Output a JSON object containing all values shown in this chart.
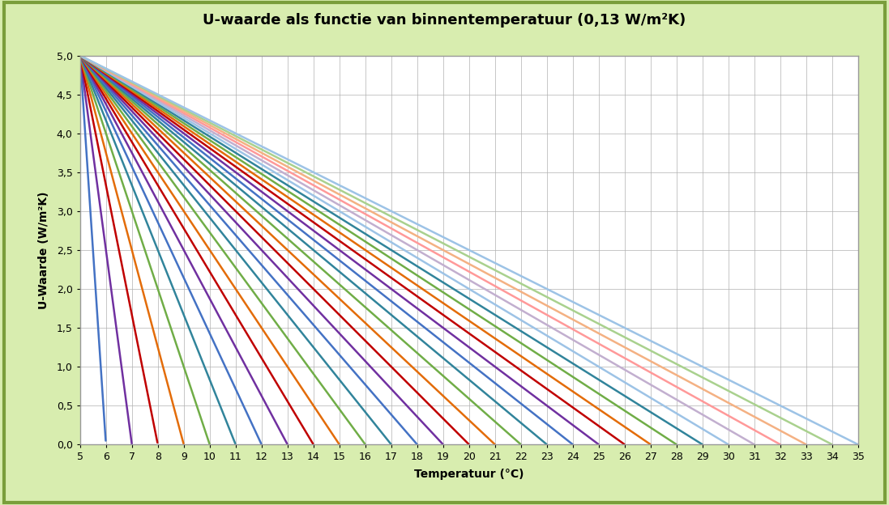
{
  "title": "U-waarde als functie van binnentemperatuur (0,13 W/m²K)",
  "xlabel": "Temperatuur (°C)",
  "ylabel": "U-Waarde (W/m²K)",
  "x_min": 5,
  "x_max": 35,
  "y_min": 0.0,
  "y_max": 5.0,
  "background_outer": "#d8edaf",
  "background_inner": "#ffffff",
  "grid_color": "#b0b0b0",
  "x_ticks": [
    5,
    6,
    7,
    8,
    9,
    10,
    11,
    12,
    13,
    14,
    15,
    16,
    17,
    18,
    19,
    20,
    21,
    22,
    23,
    24,
    25,
    26,
    27,
    28,
    29,
    30,
    31,
    32,
    33,
    34,
    35
  ],
  "y_ticks": [
    0.0,
    0.5,
    1.0,
    1.5,
    2.0,
    2.5,
    3.0,
    3.5,
    4.0,
    4.5,
    5.0
  ],
  "T_zeros": [
    6,
    7,
    8,
    9,
    10,
    11,
    12,
    13,
    14,
    15,
    16,
    17,
    18,
    19,
    20,
    21,
    22,
    23,
    24,
    25,
    26,
    27,
    28,
    29,
    30,
    31,
    32,
    33,
    34,
    35
  ],
  "colors_cycle": [
    "#4472C4",
    "#7030A0",
    "#C00000",
    "#E36C09",
    "#70AD47",
    "#2E75B6",
    "#7030A0",
    "#9B2335",
    "#ED7D31",
    "#4BACC6"
  ],
  "title_fontsize": 13,
  "axis_label_fontsize": 10,
  "tick_fontsize": 9,
  "line_width": 1.8,
  "y_start": 5.0
}
